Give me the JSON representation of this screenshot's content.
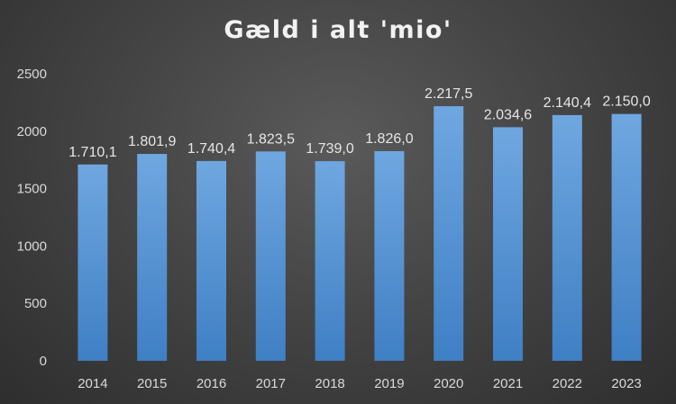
{
  "chart_data": {
    "type": "bar",
    "title": "Gæld i alt 'mio'",
    "categories": [
      "2014",
      "2015",
      "2016",
      "2017",
      "2018",
      "2019",
      "2020",
      "2021",
      "2022",
      "2023"
    ],
    "values": [
      1710.1,
      1801.9,
      1740.4,
      1823.5,
      1739.0,
      1826.0,
      2217.5,
      2034.6,
      2140.4,
      2150.0
    ],
    "data_labels": [
      "1.710,1",
      "1.801,9",
      "1.740,4",
      "1.823,5",
      "1.739,0",
      "1.826,0",
      "2.217,5",
      "2.034,6",
      "2.140,4",
      "2.150,0"
    ],
    "yticks": [
      0,
      500,
      1000,
      1500,
      2000,
      2500
    ],
    "ylim": [
      0,
      2500
    ],
    "xlabel": "",
    "ylabel": "",
    "grid": false,
    "legend": "none",
    "colors": {
      "bar_top": "#6fa7e0",
      "bar_bottom": "#3f7fc4",
      "background": "#404040",
      "text": "#d9d9d9"
    }
  }
}
